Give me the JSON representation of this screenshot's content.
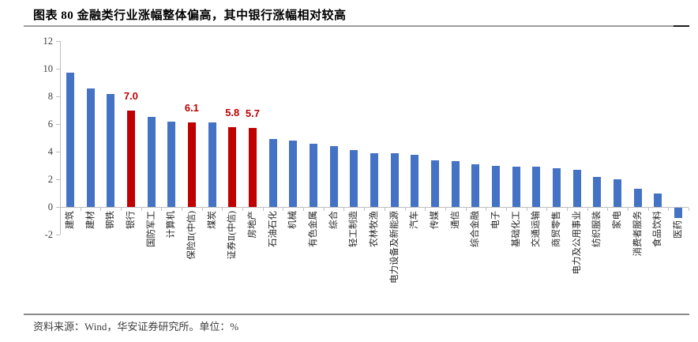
{
  "header": {
    "title": "图表 80 金融类行业涨幅整体偏高，其中银行涨幅相对较高"
  },
  "footer": {
    "source_note": "资料来源：Wind，华安证券研究所。单位：%"
  },
  "colors": {
    "bar_blue": "#4472C4",
    "bar_red": "#C00000",
    "axis_gray": "#BFBFBF",
    "label_red": "#C00000"
  },
  "chart_data": {
    "type": "bar",
    "title": "图表 80 金融类行业涨幅整体偏高，其中银行涨幅相对较高",
    "xlabel": "",
    "ylabel": "",
    "unit": "%",
    "ylim": [
      -2,
      12
    ],
    "yticks": [
      12,
      10,
      8,
      6,
      4,
      2,
      0,
      -2
    ],
    "grid": false,
    "legend": false,
    "categories": [
      "建筑",
      "建材",
      "钢铁",
      "银行",
      "国防军工",
      "计算机",
      "保险Ⅱ(中信)",
      "煤炭",
      "证券Ⅱ(中信)",
      "房地产",
      "石油石化",
      "机械",
      "有色金属",
      "综合",
      "轻工制造",
      "农林牧渔",
      "电力设备及新能源",
      "汽车",
      "传媒",
      "通信",
      "综合金融",
      "电子",
      "基础化工",
      "交通运输",
      "商贸零售",
      "电力及公用事业",
      "纺织服装",
      "家电",
      "消费者服务",
      "食品饮料",
      "医药"
    ],
    "values": [
      9.7,
      8.6,
      8.2,
      7.0,
      6.5,
      6.2,
      6.1,
      6.1,
      5.8,
      5.7,
      4.9,
      4.8,
      4.6,
      4.4,
      4.1,
      3.9,
      3.9,
      3.8,
      3.4,
      3.3,
      3.1,
      3.0,
      2.9,
      2.9,
      2.8,
      2.7,
      2.2,
      2.0,
      1.3,
      1.0,
      -0.8
    ],
    "highlighted_indices": [
      3,
      6,
      8,
      9
    ],
    "data_labels": [
      {
        "index": 3,
        "text": "7.0"
      },
      {
        "index": 6,
        "text": "6.1"
      },
      {
        "index": 8,
        "text": "5.8"
      },
      {
        "index": 9,
        "text": "5.7"
      }
    ]
  }
}
